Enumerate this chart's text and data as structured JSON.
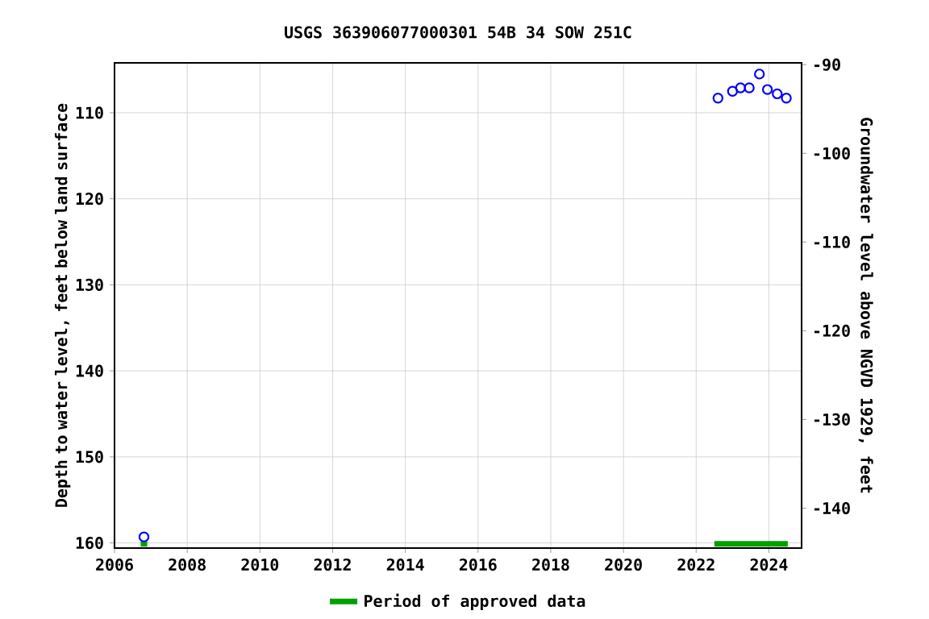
{
  "chart_data": {
    "type": "scatter",
    "title": "USGS 363906077000301 54B 34 SOW 251C",
    "ylabel": "Depth to water level, feet below land surface",
    "y2label": "Groundwater level above NGVD 1929, feet",
    "x": [
      2006.81,
      2022.6,
      2023.0,
      2023.22,
      2023.46,
      2023.74,
      2023.96,
      2024.23,
      2024.48
    ],
    "series": [
      {
        "color": "#0000ff",
        "values": [
          159.3,
          108.3,
          107.5,
          107.1,
          107.1,
          105.5,
          107.3,
          107.8,
          108.3
        ]
      },
      {
        "type": "line",
        "name": "Period of approved data",
        "color": "#00a000",
        "marker": "none",
        "x": [
          2006.72,
          2006.9,
          2015,
          2022.5,
          2024.52
        ],
        "values": [
          160.1,
          160.1,
          null,
          160.1,
          160.1
        ]
      }
    ],
    "xlim": [
      2006,
      2024.9
    ],
    "xticks": [
      2006,
      2008,
      2010,
      2012,
      2014,
      2016,
      2018,
      2020,
      2022,
      2024
    ],
    "ylim": [
      160.6,
      104.2
    ],
    "yticks": [
      110,
      120,
      130,
      140,
      150,
      160
    ],
    "y2lim": [
      -144.5,
      -89.8
    ],
    "y2ticks": [
      -90,
      -100,
      -110,
      -120,
      -130,
      -140
    ],
    "grid": true,
    "marker": "circle",
    "legend": "bottom"
  }
}
